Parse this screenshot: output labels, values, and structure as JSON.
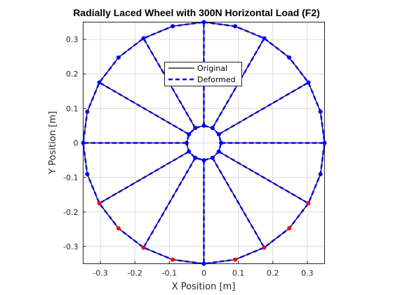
{
  "chart_data": {
    "type": "line",
    "title": "Radially Laced Wheel with 300N Horizontal Load (F2)",
    "xlabel": "X Position [m]",
    "ylabel": "Y Position [m]",
    "xlim": [
      -0.35,
      0.35
    ],
    "ylim": [
      -0.35,
      0.35
    ],
    "xticks": [
      -0.3,
      -0.2,
      -0.1,
      0,
      0.1,
      0.2,
      0.3
    ],
    "yticks": [
      -0.3,
      -0.2,
      -0.1,
      0,
      0.1,
      0.2,
      0.3
    ],
    "xtick_labels": [
      "-0.3",
      "-0.2",
      "-0.1",
      "0",
      "0.1",
      "0.2",
      "0.3"
    ],
    "ytick_labels": [
      "-0.3",
      "-0.2",
      "-0.1",
      "0",
      "0.1",
      "0.2",
      "0.3"
    ],
    "grid": true,
    "axis_equal": true,
    "rim_radius": 0.35,
    "hub_radius": 0.05,
    "num_spokes": 12,
    "rim_node_angles_deg": [
      90,
      75,
      60,
      45,
      30,
      15,
      0,
      -15,
      -30,
      -45,
      -60,
      -75,
      -90,
      -105,
      -120,
      -135,
      -150,
      -165,
      180,
      165,
      150,
      135,
      120,
      105
    ],
    "rim_node_deformed_shift": [
      0,
      0,
      0,
      0,
      0,
      0,
      0,
      0,
      0,
      0,
      0,
      0,
      0,
      0,
      0,
      0,
      0,
      0,
      0,
      0,
      0,
      0,
      0,
      0
    ],
    "highlighted_rim_nodes_deg": [
      -30,
      -45,
      -60,
      -75,
      -105,
      -120,
      -135,
      -150
    ],
    "series": [
      {
        "name": "Original",
        "color": "#000000",
        "style": "solid"
      },
      {
        "name": "Deformed",
        "color": "#0000ff",
        "style": "dashed"
      }
    ],
    "node_colors": {
      "normal": "#0000ff",
      "highlight": "#ff0000"
    },
    "legend_position": "upper-center"
  }
}
